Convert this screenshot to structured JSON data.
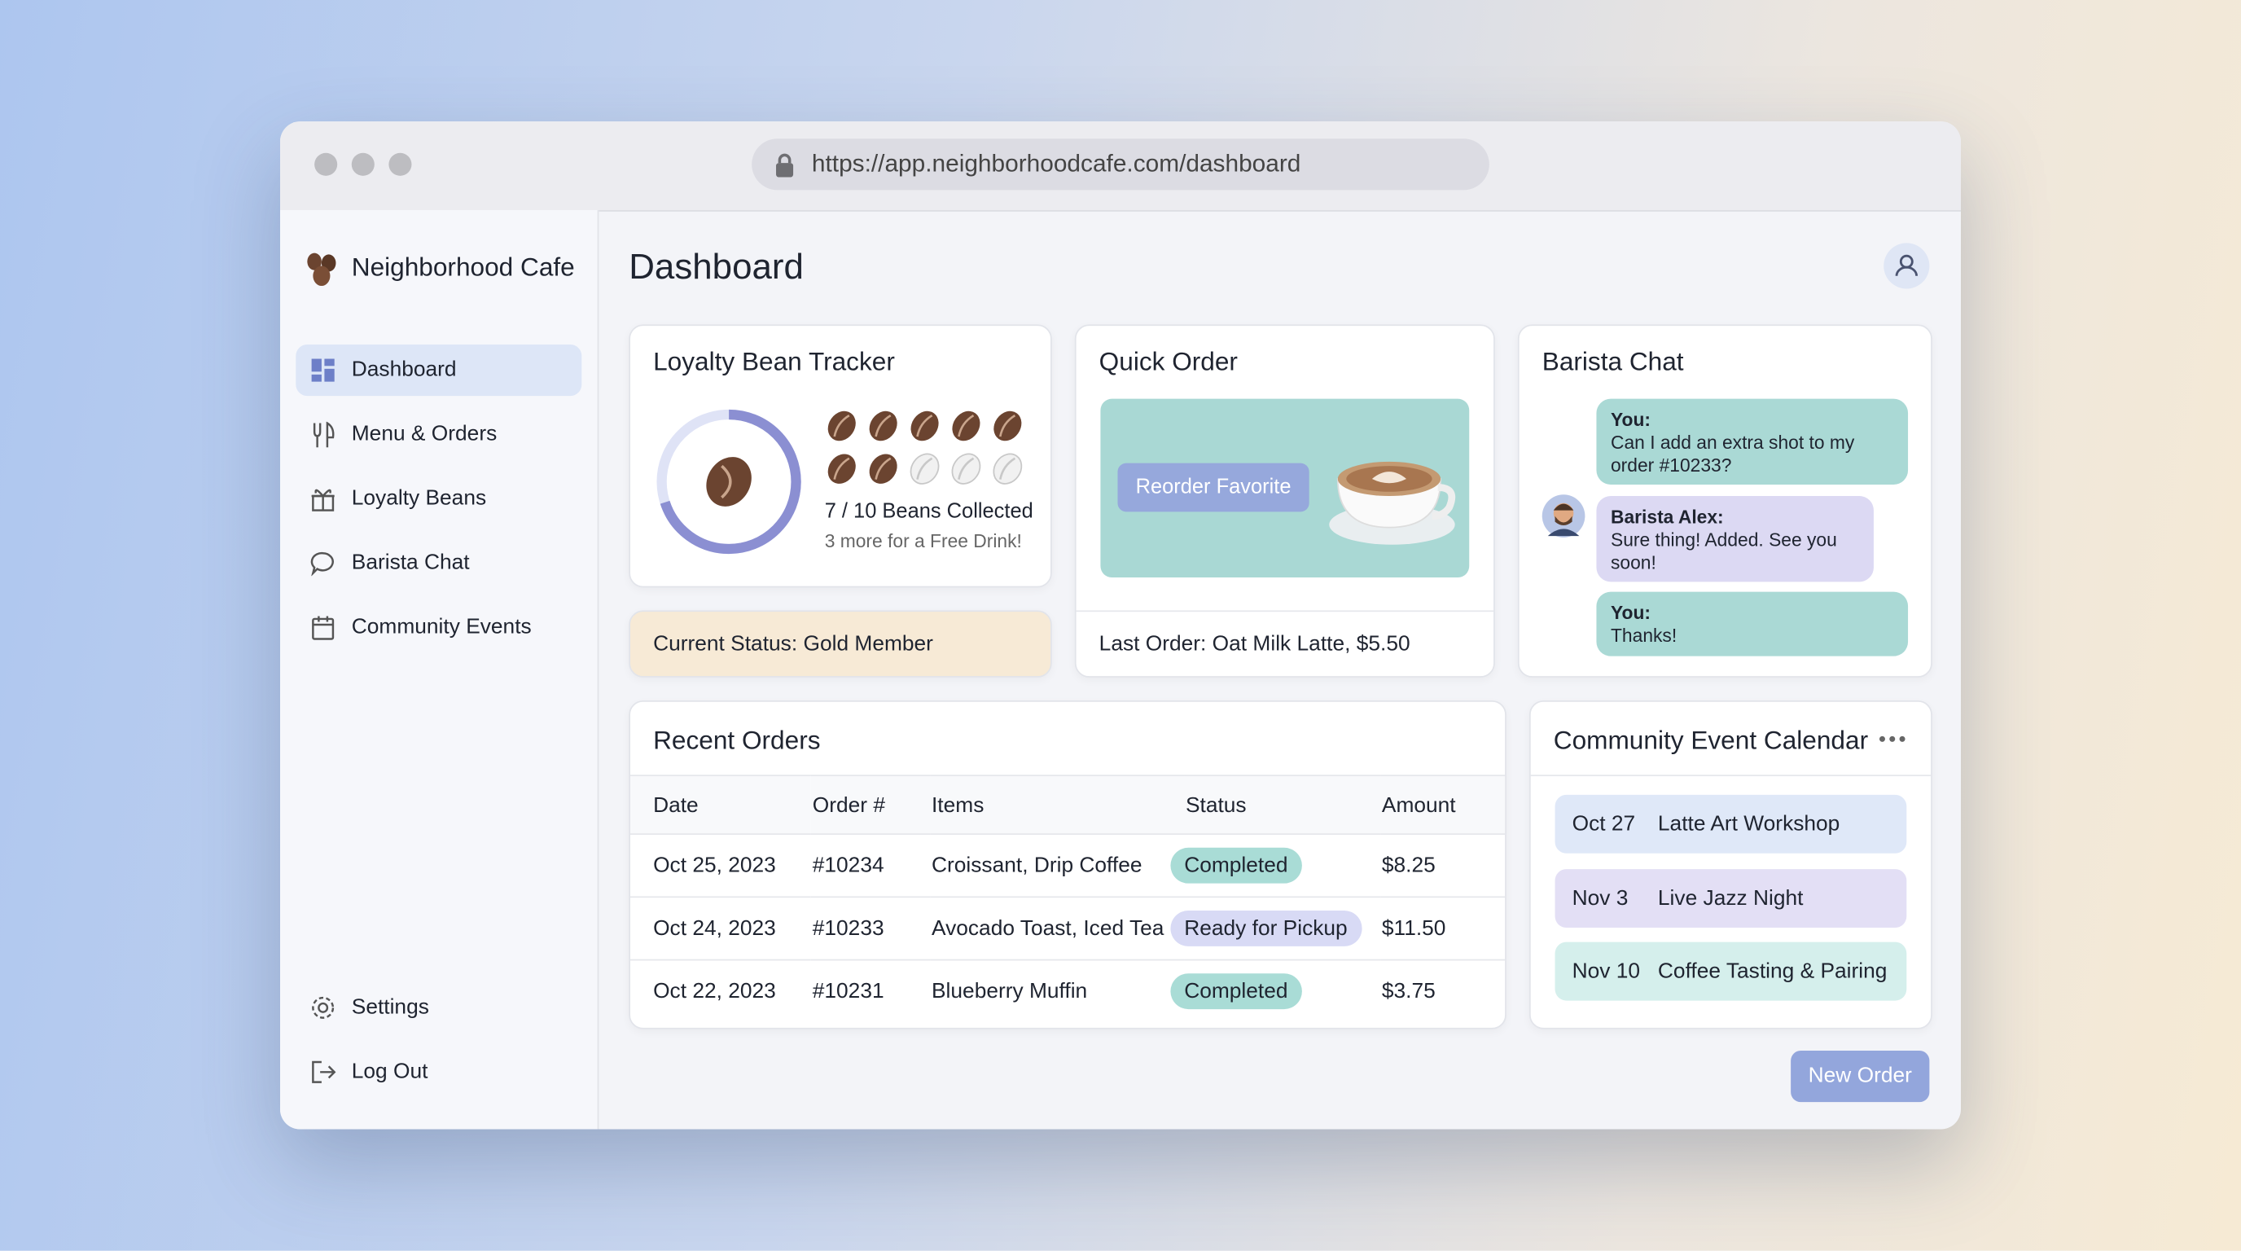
{
  "browser": {
    "url": "https://app.neighborhoodcafe.com/dashboard"
  },
  "sidebar": {
    "brand": "Neighborhood Cafe",
    "nav": [
      "Dashboard",
      "Menu & Orders",
      "Loyalty Beans",
      "Barista Chat",
      "Community Events"
    ],
    "bottom": [
      "Settings",
      "Log Out"
    ]
  },
  "header": {
    "title": "Dashboard"
  },
  "loyalty": {
    "title": "Loyalty Bean Tracker",
    "collected": 7,
    "total": 10,
    "count_text": "7 / 10 Beans Collected",
    "subtext": "3 more for a Free Drink!",
    "status_label": "Current Status:",
    "status_value": "Gold Member"
  },
  "quick_order": {
    "title": "Quick Order",
    "button": "Reorder Favorite",
    "last_label": "Last Order:",
    "last_value": "Oat Milk Latte, $5.50"
  },
  "chat": {
    "title": "Barista Chat",
    "messages": [
      {
        "sender": "You:",
        "text": "Can I add an extra shot to my order #10233?"
      },
      {
        "sender": "Barista Alex:",
        "text": "Sure thing! Added. See you soon!"
      },
      {
        "sender": "You:",
        "text": "Thanks!"
      }
    ]
  },
  "orders": {
    "title": "Recent Orders",
    "columns": [
      "Date",
      "Order #",
      "Items",
      "Status",
      "Amount"
    ],
    "rows": [
      {
        "cells": [
          "Oct 25, 2023",
          "#10234",
          "Croissant, Drip Coffee",
          "Completed",
          "$8.25"
        ],
        "color": "#a9dcd6"
      },
      {
        "cells": [
          "Oct 24, 2023",
          "#10233",
          "Avocado Toast, Iced Tea",
          "Ready for Pickup",
          "$11.50"
        ],
        "color": "#d8daf5"
      },
      {
        "cells": [
          "Oct 22, 2023",
          "#10231",
          "Blueberry Muffin",
          "Completed",
          "$3.75"
        ],
        "color": "#a9dcd6"
      }
    ]
  },
  "events": {
    "title": "Community Event Calendar",
    "items": [
      {
        "date": "Oct 27",
        "name": "Latte Art Workshop",
        "color": "#dfe8f8"
      },
      {
        "date": "Nov 3",
        "name": "Live Jazz Night",
        "color": "#e3dff5"
      },
      {
        "date": "Nov 10",
        "name": "Coffee Tasting & Pairing",
        "color": "#d5efec"
      }
    ]
  },
  "actions": {
    "new_order": "New Order"
  }
}
